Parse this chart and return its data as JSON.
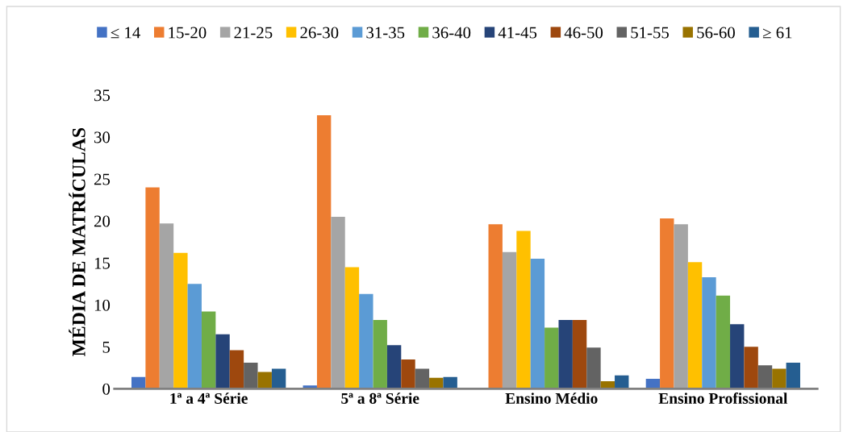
{
  "chart_data": {
    "type": "bar",
    "ylabel": "MÉDIA DE MATRÍCULAS",
    "categories": [
      "1ª a 4ª Série",
      "5ª a 8ª Série",
      "Ensino Médio",
      "Ensino Profissional"
    ],
    "series": [
      {
        "name": "≤ 14",
        "color": "#4472c4",
        "values": [
          1.4,
          0.4,
          0.1,
          1.2
        ]
      },
      {
        "name": "15-20",
        "color": "#ed7d31",
        "values": [
          24.0,
          32.6,
          19.6,
          20.3
        ]
      },
      {
        "name": "21-25",
        "color": "#a5a5a5",
        "values": [
          19.7,
          20.5,
          16.3,
          19.6
        ]
      },
      {
        "name": "26-30",
        "color": "#ffc000",
        "values": [
          16.2,
          14.5,
          18.8,
          15.1
        ]
      },
      {
        "name": "31-35",
        "color": "#5b9bd5",
        "values": [
          12.5,
          11.3,
          15.5,
          13.3
        ]
      },
      {
        "name": "36-40",
        "color": "#70ad47",
        "values": [
          9.2,
          8.2,
          7.3,
          11.1
        ]
      },
      {
        "name": "41-45",
        "color": "#264478",
        "values": [
          6.5,
          5.2,
          8.2,
          7.7
        ]
      },
      {
        "name": "46-50",
        "color": "#9e480e",
        "values": [
          4.6,
          3.5,
          8.2,
          5.0
        ]
      },
      {
        "name": "51-55",
        "color": "#636363",
        "values": [
          3.1,
          2.4,
          4.9,
          2.8
        ]
      },
      {
        "name": "56-60",
        "color": "#997300",
        "values": [
          2.0,
          1.3,
          0.9,
          2.4
        ]
      },
      {
        "name": "≥ 61",
        "color": "#255e91",
        "values": [
          2.4,
          1.4,
          1.6,
          3.1
        ]
      }
    ],
    "ylim": [
      0,
      35
    ],
    "yticks": [
      0,
      5,
      10,
      15,
      20,
      25,
      30,
      35
    ],
    "grid": false,
    "legend": "top"
  }
}
